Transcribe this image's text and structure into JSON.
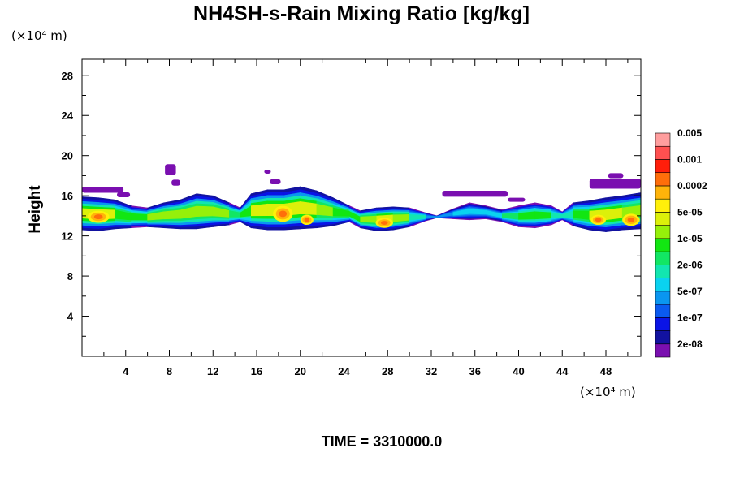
{
  "chart_data": {
    "type": "heatmap",
    "title": "NH4SH-s-Rain Mixing Ratio [kg/kg]",
    "ylabel": "Height",
    "xlabel": "",
    "x_unit_text": "(×10⁴ m)",
    "y_unit_text": "(×10⁴ m)",
    "xlim": [
      0,
      51.2
    ],
    "ylim": [
      0,
      29.6
    ],
    "x_ticks": [
      4,
      8,
      12,
      16,
      20,
      24,
      28,
      32,
      36,
      40,
      44,
      48
    ],
    "y_ticks": [
      4,
      8,
      12,
      16,
      20,
      24,
      28
    ],
    "time_label": "TIME = 3310000.0",
    "colorbar": {
      "colors": [
        "#7a0fb0",
        "#1212a0",
        "#0a14e6",
        "#0a5af0",
        "#0a96f0",
        "#0ad2f0",
        "#12e6b0",
        "#12e664",
        "#12e612",
        "#96f00a",
        "#dcf00a",
        "#fff00a",
        "#ffb40a",
        "#ff6e0a",
        "#ff1e0a",
        "#ff5050",
        "#ff9e9e"
      ],
      "labels": [
        "2e-08",
        "1e-07",
        "5e-07",
        "2e-06",
        "1e-05",
        "5e-05",
        "0.0002",
        "0.001",
        "0.005"
      ]
    },
    "cloud_band": {
      "core": [
        {
          "x": 0.0,
          "bottom": 12.6,
          "top": 15.9,
          "level": 11
        },
        {
          "x": 1.5,
          "bottom": 12.5,
          "top": 15.8,
          "level": 11
        },
        {
          "x": 3.0,
          "bottom": 12.7,
          "top": 15.6,
          "level": 10
        },
        {
          "x": 4.5,
          "bottom": 12.8,
          "top": 15.0,
          "level": 8
        },
        {
          "x": 6.0,
          "bottom": 12.9,
          "top": 14.8,
          "level": 9
        },
        {
          "x": 7.5,
          "bottom": 12.8,
          "top": 15.3,
          "level": 10
        },
        {
          "x": 9.0,
          "bottom": 12.7,
          "top": 15.6,
          "level": 10
        },
        {
          "x": 10.5,
          "bottom": 12.7,
          "top": 16.2,
          "level": 10
        },
        {
          "x": 12.0,
          "bottom": 12.9,
          "top": 16.0,
          "level": 10
        },
        {
          "x": 13.5,
          "bottom": 13.1,
          "top": 15.3,
          "level": 9
        },
        {
          "x": 14.5,
          "bottom": 13.4,
          "top": 14.8,
          "level": 7
        },
        {
          "x": 15.5,
          "bottom": 12.8,
          "top": 16.2,
          "level": 10
        },
        {
          "x": 17.0,
          "bottom": 12.6,
          "top": 16.6,
          "level": 11
        },
        {
          "x": 18.5,
          "bottom": 12.6,
          "top": 16.6,
          "level": 11
        },
        {
          "x": 20.0,
          "bottom": 12.7,
          "top": 16.9,
          "level": 11
        },
        {
          "x": 21.5,
          "bottom": 12.8,
          "top": 16.5,
          "level": 10
        },
        {
          "x": 23.0,
          "bottom": 13.0,
          "top": 15.8,
          "level": 10
        },
        {
          "x": 24.5,
          "bottom": 13.4,
          "top": 15.0,
          "level": 8
        },
        {
          "x": 25.5,
          "bottom": 12.8,
          "top": 14.5,
          "level": 9
        },
        {
          "x": 27.0,
          "bottom": 12.5,
          "top": 14.8,
          "level": 11
        },
        {
          "x": 28.5,
          "bottom": 12.6,
          "top": 14.9,
          "level": 10
        },
        {
          "x": 30.0,
          "bottom": 12.9,
          "top": 14.8,
          "level": 9
        },
        {
          "x": 31.5,
          "bottom": 13.5,
          "top": 14.3,
          "level": 5
        },
        {
          "x": 32.5,
          "bottom": 13.8,
          "top": 14.0,
          "level": 3
        },
        {
          "x": 34.0,
          "bottom": 13.7,
          "top": 14.7,
          "level": 5
        },
        {
          "x": 35.5,
          "bottom": 13.6,
          "top": 15.3,
          "level": 6
        },
        {
          "x": 37.0,
          "bottom": 13.7,
          "top": 15.0,
          "level": 5
        },
        {
          "x": 38.5,
          "bottom": 13.4,
          "top": 14.6,
          "level": 6
        },
        {
          "x": 40.0,
          "bottom": 12.9,
          "top": 15.0,
          "level": 9
        },
        {
          "x": 41.5,
          "bottom": 12.8,
          "top": 15.3,
          "level": 9
        },
        {
          "x": 43.0,
          "bottom": 13.1,
          "top": 15.0,
          "level": 8
        },
        {
          "x": 44.0,
          "bottom": 13.6,
          "top": 14.4,
          "level": 5
        },
        {
          "x": 45.0,
          "bottom": 13.0,
          "top": 15.3,
          "level": 8
        },
        {
          "x": 46.5,
          "bottom": 12.6,
          "top": 15.5,
          "level": 10
        },
        {
          "x": 48.0,
          "bottom": 12.4,
          "top": 15.8,
          "level": 11
        },
        {
          "x": 49.5,
          "bottom": 12.6,
          "top": 16.0,
          "level": 10
        },
        {
          "x": 51.2,
          "bottom": 12.7,
          "top": 16.3,
          "level": 10
        }
      ],
      "wisps": [
        {
          "x0": 0.0,
          "x1": 3.8,
          "y": 16.6,
          "thickness": 0.6
        },
        {
          "x0": 3.2,
          "x1": 4.4,
          "y": 16.1,
          "thickness": 0.5
        },
        {
          "x0": 7.6,
          "x1": 8.6,
          "y": 18.6,
          "thickness": 1.1
        },
        {
          "x0": 8.2,
          "x1": 9.0,
          "y": 17.3,
          "thickness": 0.6
        },
        {
          "x0": 16.7,
          "x1": 17.3,
          "y": 18.4,
          "thickness": 0.4
        },
        {
          "x0": 17.2,
          "x1": 18.2,
          "y": 17.4,
          "thickness": 0.5
        },
        {
          "x0": 33.0,
          "x1": 39.0,
          "y": 16.2,
          "thickness": 0.6
        },
        {
          "x0": 39.0,
          "x1": 40.6,
          "y": 15.6,
          "thickness": 0.4
        },
        {
          "x0": 46.5,
          "x1": 51.2,
          "y": 17.2,
          "thickness": 1.0
        },
        {
          "x0": 48.2,
          "x1": 49.6,
          "y": 18.0,
          "thickness": 0.5
        }
      ],
      "hotspots": [
        {
          "x": 1.5,
          "y": 13.9,
          "rx": 1.0,
          "ry": 0.6,
          "level": 13
        },
        {
          "x": 18.4,
          "y": 14.2,
          "rx": 0.9,
          "ry": 0.8,
          "level": 13
        },
        {
          "x": 20.6,
          "y": 13.6,
          "rx": 0.6,
          "ry": 0.5,
          "level": 13
        },
        {
          "x": 27.7,
          "y": 13.3,
          "rx": 0.8,
          "ry": 0.5,
          "level": 13
        },
        {
          "x": 47.3,
          "y": 13.6,
          "rx": 0.7,
          "ry": 0.5,
          "level": 13
        },
        {
          "x": 50.3,
          "y": 13.6,
          "rx": 0.8,
          "ry": 0.6,
          "level": 13
        }
      ]
    }
  }
}
